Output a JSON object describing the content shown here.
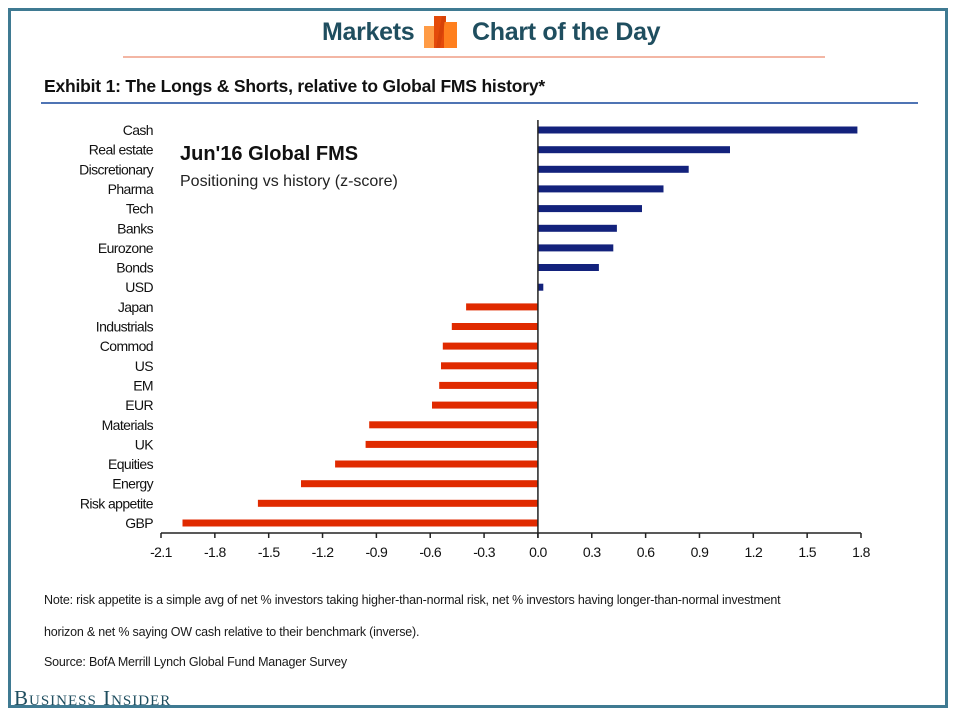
{
  "header": {
    "left_label": "Markets",
    "right_label": "Chart of the Day",
    "logo_icon": "bar-chart-logo-icon"
  },
  "exhibit_title": "Exhibit 1: The Longs & Shorts, relative to Global FMS history*",
  "colors": {
    "frame": "#3f7a92",
    "header_text": "#1f4e5f",
    "long_bar": "#13227c",
    "short_bar": "#e02a00",
    "header_rule": "#f3b6a4",
    "exhibit_rule": "#4f74b4"
  },
  "chart_data": {
    "type": "bar",
    "orientation": "horizontal",
    "title": "Jun'16 Global FMS",
    "subtitle": "Positioning vs history (z-score)",
    "xlabel": "",
    "ylabel": "",
    "xlim": [
      -2.1,
      1.8
    ],
    "xticks": [
      -2.1,
      -1.8,
      -1.5,
      -1.2,
      -0.9,
      -0.6,
      -0.3,
      0.0,
      0.3,
      0.6,
      0.9,
      1.2,
      1.5,
      1.8
    ],
    "xtick_labels": [
      "-2.1",
      "-1.8",
      "-1.5",
      "-1.2",
      "-0.9",
      "-0.6",
      "-0.3",
      "0.0",
      "0.3",
      "0.6",
      "0.9",
      "1.2",
      "1.5",
      "1.8"
    ],
    "grid": false,
    "legend": "none",
    "categories": [
      "Cash",
      "Real estate",
      "Discretionary",
      "Pharma",
      "Tech",
      "Banks",
      "Eurozone",
      "Bonds",
      "USD",
      "Japan",
      "Industrials",
      "Commod",
      "US",
      "EM",
      "EUR",
      "Materials",
      "UK",
      "Equities",
      "Energy",
      "Risk appetite",
      "GBP"
    ],
    "values": [
      1.78,
      1.07,
      0.84,
      0.7,
      0.58,
      0.44,
      0.42,
      0.34,
      0.03,
      -0.4,
      -0.48,
      -0.53,
      -0.54,
      -0.55,
      -0.59,
      -0.94,
      -0.96,
      -1.13,
      -1.32,
      -1.56,
      -1.98
    ]
  },
  "notes": {
    "line1": "Note: risk appetite is a simple avg of net % investors taking higher-than-normal risk, net % investors having longer-than-normal investment",
    "line2": "horizon & net % saying OW cash relative to their benchmark (inverse).",
    "source": "Source: BofA Merrill Lynch Global Fund Manager Survey"
  },
  "brand": "Business Insider"
}
